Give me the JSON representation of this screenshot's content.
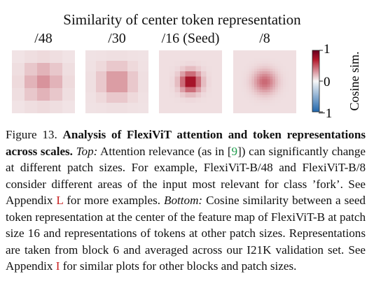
{
  "figure": {
    "title": "Similarity of center token representation",
    "panels": [
      {
        "label": "/48",
        "grid": 5,
        "sigma": 1.0,
        "peak": 0.38,
        "floor": 0.07
      },
      {
        "label": "/30",
        "grid": 6,
        "sigma": 1.0,
        "peak": 0.42,
        "floor": 0.08
      },
      {
        "label": "/16 (Seed)",
        "grid": 12,
        "sigma": 1.3,
        "peak": 1.0,
        "floor": 0.09
      },
      {
        "label": "/8",
        "grid": 24,
        "sigma": 3.0,
        "peak": 0.55,
        "floor": 0.09
      }
    ],
    "colorbar": {
      "label": "Cosine sim.",
      "ticks": [
        "1",
        "0",
        "−1"
      ],
      "range": [
        -1,
        1
      ],
      "colors": {
        "min": "#2166ac",
        "mid": "#f7f7f7",
        "max": "#b2182b",
        "top": "#67001f"
      }
    }
  },
  "caption": {
    "number": "Figure 13.",
    "title": "Analysis of FlexiViT attention and token representations across scales.",
    "top_label": "Top:",
    "top_text_1": "Attention relevance (as in [",
    "top_citation": "9",
    "top_text_2": "]) can significantly change at different patch sizes. For example, FlexiViT-B/48 and FlexiViT-B/8 consider different areas of the input most relevant for class ’fork’. See Appendix",
    "top_appendix": "L",
    "top_text_3": "for more examples.",
    "bottom_label": "Bottom:",
    "bottom_text_1": "Cosine similarity between a seed token representation at the center of the feature map of FlexiViT-B at patch size 16 and representations of tokens at other patch sizes. Representations are taken from block 6 and averaged across our I21K validation set. See Appendix",
    "bottom_appendix": "I",
    "bottom_text_2": "for similar plots for other blocks and patch sizes."
  }
}
